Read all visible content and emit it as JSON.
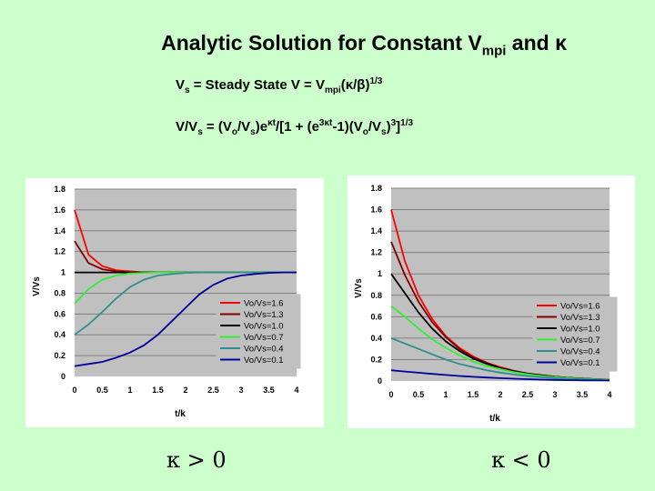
{
  "title": {
    "main": "Analytic Solution for Constant V",
    "sub": "mpi",
    "tail": " and κ"
  },
  "equations": {
    "eq1": {
      "p1": "V",
      "s1": "s",
      "p2": " = Steady State V = V",
      "s2": "mpi",
      "p3": "(κ/β)",
      "sup1": "1/3"
    },
    "eq2": {
      "p1": "V/V",
      "s1": "s",
      "p2": " = (V",
      "s2": "o",
      "p3": "/V",
      "s3": "s",
      "p4": ")e",
      "sup1": "κt",
      "p5": "/[1 + (e",
      "sup2": "3κt",
      "p6": "-1)(V",
      "s4": "o",
      "p7": "/V",
      "s5": "s",
      "p8": ")",
      "sup3": "3",
      "p9": "]",
      "sup4": "1/3"
    }
  },
  "labels": {
    "kappa_left": "κ > 0",
    "kappa_right": "κ < 0"
  },
  "chart_data": [
    {
      "type": "line",
      "id": "left",
      "xlabel": "t/k",
      "ylabel": "V/Vs",
      "xlim": [
        0,
        4
      ],
      "ylim": [
        0,
        1.8
      ],
      "xticks": [
        "0",
        "0.5",
        "1",
        "1.5",
        "2",
        "2.5",
        "3",
        "3.5",
        "4"
      ],
      "yticks": [
        "0",
        "0.2",
        "0.4",
        "0.6",
        "0.8",
        "1",
        "1.2",
        "1.4",
        "1.6",
        "1.8"
      ],
      "grid": "horizontal",
      "legend": "bottom-right",
      "x": [
        0,
        0.25,
        0.5,
        0.75,
        1,
        1.25,
        1.5,
        1.75,
        2,
        2.25,
        2.5,
        2.75,
        3,
        3.25,
        3.5,
        3.75,
        4
      ],
      "series": [
        {
          "name": "Vo/Vs=1.6",
          "color": "#ff0000",
          "values": [
            1.6,
            1.17,
            1.06,
            1.02,
            1.01,
            1.0,
            1.0,
            1.0,
            1.0,
            1.0,
            1.0,
            1.0,
            1.0,
            1.0,
            1.0,
            1.0,
            1.0
          ]
        },
        {
          "name": "Vo/Vs=1.3",
          "color": "#800000",
          "values": [
            1.3,
            1.09,
            1.03,
            1.01,
            1.0,
            1.0,
            1.0,
            1.0,
            1.0,
            1.0,
            1.0,
            1.0,
            1.0,
            1.0,
            1.0,
            1.0,
            1.0
          ]
        },
        {
          "name": "Vo/Vs=1.0",
          "color": "#000000",
          "values": [
            1.0,
            1.0,
            1.0,
            1.0,
            1.0,
            1.0,
            1.0,
            1.0,
            1.0,
            1.0,
            1.0,
            1.0,
            1.0,
            1.0,
            1.0,
            1.0,
            1.0
          ]
        },
        {
          "name": "Vo/Vs=0.7",
          "color": "#33ee33",
          "values": [
            0.7,
            0.84,
            0.93,
            0.97,
            0.99,
            0.995,
            1.0,
            1.0,
            1.0,
            1.0,
            1.0,
            1.0,
            1.0,
            1.0,
            1.0,
            1.0,
            1.0
          ]
        },
        {
          "name": "Vo/Vs=0.4",
          "color": "#2f8f8f",
          "values": [
            0.4,
            0.5,
            0.62,
            0.75,
            0.86,
            0.93,
            0.97,
            0.985,
            0.995,
            1.0,
            1.0,
            1.0,
            1.0,
            1.0,
            1.0,
            1.0,
            1.0
          ]
        },
        {
          "name": "Vo/Vs=0.1",
          "color": "#000099",
          "values": [
            0.1,
            0.12,
            0.14,
            0.18,
            0.23,
            0.3,
            0.4,
            0.53,
            0.66,
            0.79,
            0.88,
            0.94,
            0.97,
            0.985,
            0.995,
            1.0,
            1.0
          ]
        }
      ]
    },
    {
      "type": "line",
      "id": "right",
      "xlabel": "t/k",
      "ylabel": "V/Vs",
      "xlim": [
        0,
        4
      ],
      "ylim": [
        0,
        1.8
      ],
      "xticks": [
        "0",
        "0.5",
        "1",
        "1.5",
        "2",
        "2.5",
        "3",
        "3.5",
        "4"
      ],
      "yticks": [
        "0",
        "0.2",
        "0.4",
        "0.6",
        "0.8",
        "1",
        "1.2",
        "1.4",
        "1.6",
        "1.8"
      ],
      "grid": "horizontal",
      "legend": "bottom-right",
      "x": [
        0,
        0.25,
        0.5,
        0.75,
        1,
        1.25,
        1.5,
        1.75,
        2,
        2.25,
        2.5,
        2.75,
        3,
        3.25,
        3.5,
        3.75,
        4
      ],
      "series": [
        {
          "name": "Vo/Vs=1.6",
          "color": "#ff0000",
          "values": [
            1.6,
            1.12,
            0.8,
            0.58,
            0.42,
            0.31,
            0.23,
            0.17,
            0.13,
            0.095,
            0.07,
            0.055,
            0.04,
            0.03,
            0.023,
            0.017,
            0.013
          ]
        },
        {
          "name": "Vo/Vs=1.3",
          "color": "#800000",
          "values": [
            1.3,
            0.99,
            0.74,
            0.55,
            0.41,
            0.3,
            0.22,
            0.17,
            0.12,
            0.093,
            0.07,
            0.054,
            0.04,
            0.03,
            0.023,
            0.017,
            0.013
          ]
        },
        {
          "name": "Vo/Vs=1.0",
          "color": "#000000",
          "values": [
            1.0,
            0.82,
            0.64,
            0.49,
            0.37,
            0.28,
            0.21,
            0.16,
            0.12,
            0.09,
            0.068,
            0.052,
            0.039,
            0.03,
            0.022,
            0.017,
            0.013
          ]
        },
        {
          "name": "Vo/Vs=0.7",
          "color": "#33ee33",
          "values": [
            0.7,
            0.6,
            0.49,
            0.39,
            0.31,
            0.24,
            0.18,
            0.14,
            0.11,
            0.082,
            0.062,
            0.047,
            0.036,
            0.027,
            0.02,
            0.015,
            0.012
          ]
        },
        {
          "name": "Vo/Vs=0.4",
          "color": "#2f8f8f",
          "values": [
            0.4,
            0.35,
            0.3,
            0.25,
            0.2,
            0.16,
            0.13,
            0.1,
            0.078,
            0.06,
            0.046,
            0.035,
            0.027,
            0.02,
            0.015,
            0.012,
            0.009
          ]
        },
        {
          "name": "Vo/Vs=0.1",
          "color": "#000099",
          "values": [
            0.1,
            0.088,
            0.077,
            0.066,
            0.056,
            0.047,
            0.039,
            0.032,
            0.026,
            0.021,
            0.017,
            0.013,
            0.01,
            0.008,
            0.006,
            0.005,
            0.004
          ]
        }
      ]
    }
  ]
}
